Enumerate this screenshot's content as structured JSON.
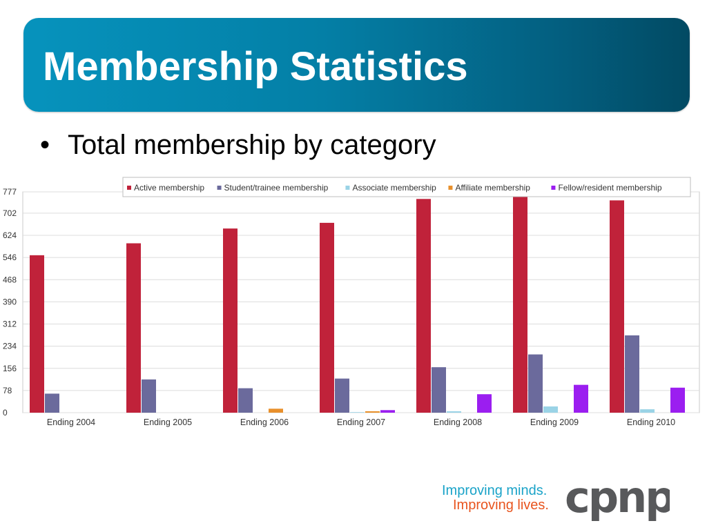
{
  "slide": {
    "title": "Membership Statistics",
    "bullet_mark": "•",
    "bullet_text": "Total membership by category"
  },
  "chart_data": {
    "type": "bar",
    "categories": [
      "Ending 2004",
      "Ending 2005",
      "Ending 2006",
      "Ending 2007",
      "Ending 2008",
      "Ending 2009",
      "Ending 2010"
    ],
    "series": [
      {
        "name": "Active membership",
        "color": "#c0223a",
        "values": [
          554,
          596,
          648,
          668,
          752,
          786,
          747
        ]
      },
      {
        "name": "Student/trainee membership",
        "color": "#6b6a9c",
        "values": [
          67,
          117,
          86,
          120,
          160,
          205,
          272
        ]
      },
      {
        "name": "Associate membership",
        "color": "#9ad3e6",
        "values": [
          0,
          0,
          0,
          2,
          5,
          22,
          12
        ]
      },
      {
        "name": "Affiliate membership",
        "color": "#e8902c",
        "values": [
          0,
          0,
          14,
          5,
          0,
          0,
          0
        ]
      },
      {
        "name": "Fellow/resident membership",
        "color": "#9b1ef0",
        "values": [
          0,
          0,
          0,
          9,
          65,
          98,
          88
        ]
      }
    ],
    "yticks": [
      0,
      78,
      156,
      234,
      312,
      390,
      468,
      546,
      624,
      702,
      777
    ],
    "ylim": [
      0,
      777
    ],
    "grid": true,
    "legend_position": "top"
  },
  "logo": {
    "line1": "Improving minds.",
    "line2": "Improving lives.",
    "mark": "cpnp"
  },
  "colors": {
    "banner": "#047fa6",
    "logo_gray": "#58595b",
    "logo_blue": "#1aa3c8",
    "logo_orange": "#e8541e"
  }
}
